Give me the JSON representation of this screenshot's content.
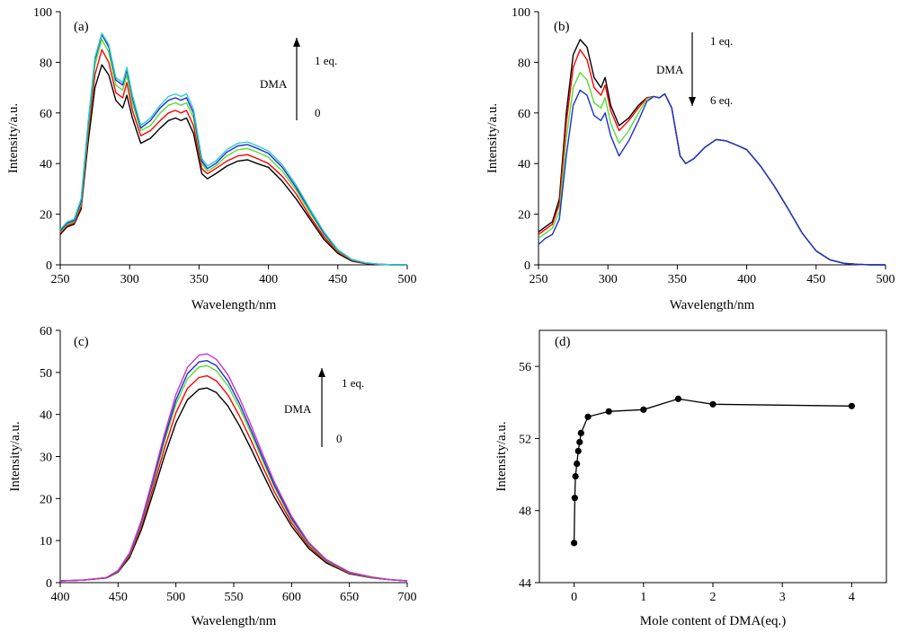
{
  "colors": {
    "black": "#000000",
    "red": "#ff0000",
    "green": "#55dd33",
    "blue": "#1f2fcf",
    "cyan": "#33cccc",
    "magenta": "#cc33cc"
  },
  "chart_data": [
    {
      "panel": "(a)",
      "type": "line",
      "xlabel": "Wavelength/nm",
      "ylabel": "Intensity/a.u.",
      "xlim": [
        250,
        500
      ],
      "ylim": [
        0,
        100
      ],
      "xticks": [
        250,
        300,
        350,
        400,
        450,
        500
      ],
      "yticks": [
        0,
        20,
        40,
        60,
        80,
        100
      ],
      "annotation": {
        "label": "DMA",
        "top": "1 eq.",
        "bottom": "0",
        "direction": "up"
      },
      "x": [
        250,
        255,
        260,
        265,
        270,
        275,
        280,
        285,
        290,
        295,
        298,
        302,
        308,
        315,
        322,
        328,
        333,
        337,
        341,
        346,
        352,
        356,
        362,
        370,
        378,
        385,
        392,
        400,
        410,
        420,
        430,
        440,
        450,
        460,
        470,
        480,
        490,
        500
      ],
      "series": [
        {
          "color": "#000000",
          "values": [
            12,
            15,
            16,
            22,
            48,
            70,
            79,
            75,
            65,
            62,
            67,
            58,
            48,
            50,
            54,
            57,
            58,
            57,
            58,
            52,
            36,
            34,
            36,
            39,
            41,
            41.5,
            40,
            38.5,
            33,
            26,
            18,
            10,
            4.5,
            1.5,
            0.5,
            0.2,
            0,
            0
          ]
        },
        {
          "color": "#ff0000",
          "values": [
            12.5,
            15.5,
            16.5,
            23,
            51,
            75,
            85,
            80,
            68,
            66,
            72,
            61,
            51,
            53,
            57,
            60,
            61,
            60,
            61,
            55,
            38,
            36,
            38,
            41,
            43,
            43.5,
            42,
            40,
            35,
            28,
            19,
            11,
            5,
            1.8,
            0.6,
            0.2,
            0,
            0
          ]
        },
        {
          "color": "#55dd33",
          "values": [
            13,
            16,
            17,
            24,
            53,
            79,
            89,
            84,
            71,
            69,
            75,
            64,
            53,
            55,
            60,
            63,
            64,
            63,
            64,
            58,
            40,
            37,
            39,
            43,
            45.5,
            46,
            44.5,
            42.5,
            37,
            29.5,
            20.5,
            12,
            5.5,
            2,
            0.7,
            0.2,
            0,
            0
          ]
        },
        {
          "color": "#1f2fcf",
          "values": [
            13.5,
            16.5,
            17.5,
            25,
            55,
            81,
            91,
            86,
            73,
            71,
            77,
            66,
            54,
            57,
            62,
            65,
            66,
            65,
            66,
            60,
            41,
            38,
            40,
            44.5,
            47,
            47.5,
            46,
            44,
            38.5,
            30.5,
            21.5,
            12.5,
            5.8,
            2.1,
            0.7,
            0.2,
            0,
            0
          ]
        },
        {
          "color": "#33cccc",
          "values": [
            14,
            17,
            18,
            26,
            56,
            82,
            91.5,
            87,
            74,
            72,
            78,
            67,
            55,
            58,
            63,
            66.5,
            67.5,
            66.5,
            67.5,
            61.5,
            42,
            39,
            41,
            45.5,
            48,
            48.5,
            47,
            45,
            39.5,
            31.5,
            22,
            13,
            6,
            2.2,
            0.8,
            0.3,
            0,
            0
          ]
        }
      ]
    },
    {
      "panel": "(b)",
      "type": "line",
      "xlabel": "Wavelength/nm",
      "ylabel": "Intensity/a.u.",
      "xlim": [
        250,
        500
      ],
      "ylim": [
        0,
        100
      ],
      "xticks": [
        250,
        300,
        350,
        400,
        450,
        500
      ],
      "yticks": [
        0,
        20,
        40,
        60,
        80,
        100
      ],
      "annotation": {
        "label": "DMA",
        "top": "1 eq.",
        "bottom": "6 eq.",
        "direction": "down"
      },
      "x": [
        250,
        255,
        260,
        265,
        270,
        275,
        280,
        285,
        290,
        295,
        298,
        302,
        308,
        315,
        322,
        328,
        333,
        337,
        341,
        346,
        352,
        356,
        362,
        370,
        378,
        385,
        392,
        400,
        410,
        420,
        430,
        440,
        450,
        460,
        470,
        480,
        490,
        500
      ],
      "series": [
        {
          "color": "#000000",
          "values": [
            13,
            15,
            17,
            26,
            60,
            83,
            89,
            86,
            74,
            70,
            74,
            63,
            55,
            58,
            63,
            66,
            66.5,
            66,
            67.5,
            62,
            43,
            40,
            42,
            46.5,
            49.5,
            49,
            47.5,
            45.5,
            39,
            31,
            22,
            12.5,
            5.5,
            2,
            0.6,
            0.2,
            0,
            0
          ]
        },
        {
          "color": "#ff0000",
          "values": [
            12,
            14,
            16,
            24,
            56,
            78,
            85,
            81,
            70,
            67,
            71,
            61,
            53,
            57,
            62,
            66,
            66.5,
            66,
            67.5,
            62,
            43,
            40,
            42,
            46.5,
            49.5,
            49,
            47.5,
            45.5,
            39,
            31,
            22,
            12.5,
            5.5,
            2,
            0.6,
            0.2,
            0,
            0
          ]
        },
        {
          "color": "#55dd33",
          "values": [
            10.5,
            12.5,
            14.5,
            21,
            50,
            70,
            76,
            73,
            64,
            62,
            66,
            56,
            48,
            53,
            60,
            65.5,
            66.5,
            66,
            67.5,
            62,
            43,
            40,
            42,
            46.5,
            49.5,
            49,
            47.5,
            45.5,
            39,
            31,
            22,
            12.5,
            5.5,
            2,
            0.6,
            0.2,
            0,
            0
          ]
        },
        {
          "color": "#1f2fcf",
          "values": [
            8,
            10.5,
            12,
            18,
            43,
            63,
            69,
            67,
            59,
            57,
            60,
            51,
            43,
            49,
            57,
            64.5,
            66.5,
            66,
            67.5,
            62,
            43,
            40,
            42,
            46.5,
            49.5,
            49,
            47.5,
            45.5,
            39,
            31,
            22,
            12.5,
            5.5,
            2,
            0.6,
            0.2,
            0,
            0
          ]
        }
      ]
    },
    {
      "panel": "(c)",
      "type": "line",
      "xlabel": "Wavelength/nm",
      "ylabel": "Intensity/a.u.",
      "xlim": [
        400,
        700
      ],
      "ylim": [
        0,
        60
      ],
      "xticks": [
        400,
        450,
        500,
        550,
        600,
        650,
        700
      ],
      "yticks": [
        0,
        10,
        20,
        30,
        40,
        50,
        60
      ],
      "annotation": {
        "label": "DMA",
        "top": "1 eq.",
        "bottom": "0",
        "direction": "up"
      },
      "x": [
        400,
        420,
        440,
        450,
        460,
        470,
        480,
        490,
        500,
        510,
        520,
        527,
        535,
        545,
        555,
        565,
        575,
        585,
        600,
        615,
        630,
        650,
        670,
        685,
        700
      ],
      "series": [
        {
          "color": "#000000",
          "values": [
            0.4,
            0.6,
            1.1,
            2.5,
            6,
            12.5,
            21,
            30,
            38,
            43.5,
            46,
            46.3,
            45.2,
            42,
            37.3,
            31.8,
            26,
            20.4,
            13.4,
            8.1,
            4.7,
            2.1,
            1.1,
            0.7,
            0.4
          ]
        },
        {
          "color": "#ff0000",
          "values": [
            0.4,
            0.6,
            1.2,
            2.6,
            6.4,
            13.3,
            22.3,
            31.8,
            40.4,
            46.2,
            48.8,
            49.2,
            48,
            44.6,
            39.6,
            33.8,
            27.6,
            21.7,
            14.2,
            8.6,
            5,
            2.2,
            1.2,
            0.7,
            0.4
          ]
        },
        {
          "color": "#55dd33",
          "values": [
            0.4,
            0.6,
            1.2,
            2.7,
            6.7,
            13.9,
            23.4,
            33.4,
            42.4,
            48.5,
            51.3,
            51.6,
            50.4,
            46.8,
            41.6,
            35.5,
            29,
            22.8,
            14.9,
            9,
            5.2,
            2.3,
            1.2,
            0.7,
            0.4
          ]
        },
        {
          "color": "#1f2fcf",
          "values": [
            0.4,
            0.6,
            1.2,
            2.8,
            6.9,
            14.3,
            24,
            34.3,
            43.4,
            49.7,
            52.5,
            52.8,
            51.6,
            47.9,
            42.6,
            36.3,
            29.7,
            23.3,
            15.3,
            9.3,
            5.4,
            2.4,
            1.3,
            0.7,
            0.4
          ]
        },
        {
          "color": "#cc33cc",
          "values": [
            0.4,
            0.6,
            1.2,
            2.9,
            7.1,
            14.7,
            24.7,
            35.2,
            44.7,
            51.2,
            54.1,
            54.4,
            53.1,
            49.4,
            43.9,
            37.4,
            30.6,
            24,
            15.8,
            9.5,
            5.5,
            2.5,
            1.3,
            0.7,
            0.4
          ]
        }
      ]
    },
    {
      "panel": "(d)",
      "type": "scatter",
      "xlabel": "Mole content of DMA(eq.)",
      "ylabel": "Intensity/a.u.",
      "xlim": [
        -0.5,
        4.5
      ],
      "ylim": [
        44,
        58
      ],
      "xticks": [
        0,
        1,
        2,
        3,
        4
      ],
      "yticks": [
        44,
        48,
        52,
        56
      ],
      "x": [
        0,
        0.01,
        0.02,
        0.04,
        0.06,
        0.08,
        0.1,
        0.2,
        0.5,
        1,
        1.5,
        2,
        4
      ],
      "values": [
        46.2,
        48.7,
        49.9,
        50.6,
        51.3,
        51.8,
        52.3,
        53.2,
        53.5,
        53.6,
        54.2,
        53.9,
        53.8
      ]
    }
  ]
}
